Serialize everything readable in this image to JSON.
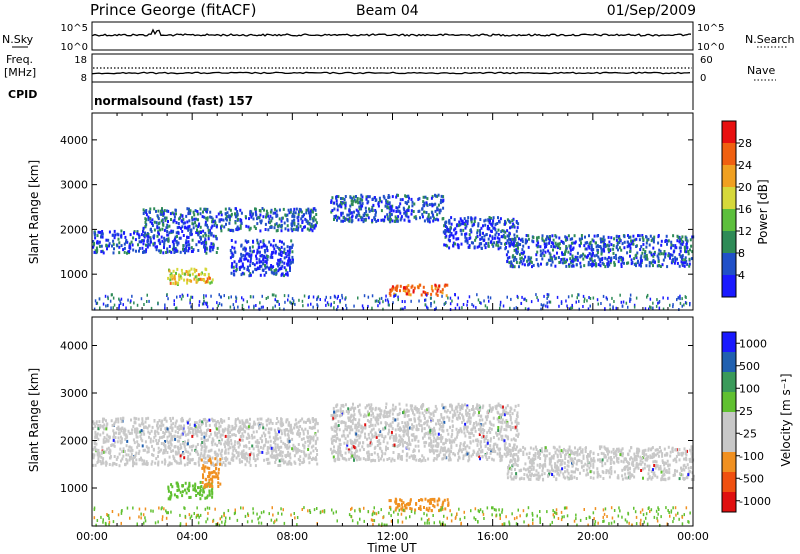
{
  "header": {
    "station": "Prince George (fitACF)",
    "beam": "Beam 04",
    "date": "01/Sep/2009"
  },
  "sky_panel": {
    "left_label": "N.Sky",
    "left_ticks": [
      "10^5",
      "10^0"
    ],
    "right_ticks": [
      "10^5",
      "10^0"
    ],
    "right_label": "N.Search"
  },
  "freq_panel": {
    "left_label_1": "Freq.",
    "left_label_2": "[MHz]",
    "left_ticks": [
      "18",
      "8"
    ],
    "right_ticks": [
      "60",
      "0"
    ],
    "right_label": "Nave"
  },
  "cpid_panel": {
    "label": "CPID",
    "program": "normalsound (fast) 157"
  },
  "colors": {
    "power_scale": [
      "#1a1aff",
      "#2050c8",
      "#2e8b57",
      "#5cbf3c",
      "#d6d83a",
      "#f0a020",
      "#f06010",
      "#e81010"
    ],
    "velocity_scale": [
      "#e01010",
      "#f05010",
      "#f09020",
      "#c8c8c8",
      "#c8c8c8",
      "#60c030",
      "#3a9a5a",
      "#2060b0",
      "#1a1aff"
    ]
  },
  "chart_data": [
    {
      "type": "heatmap",
      "name": "power",
      "xlabel": "Time UT",
      "ylabel": "Slant Range [km]",
      "xlim": [
        0,
        24
      ],
      "ylim": [
        200,
        4600
      ],
      "y_ticks": [
        "1000",
        "2000",
        "3000",
        "4000"
      ],
      "colorbar": {
        "label": "Power [dB]",
        "ticks": [
          "4",
          "8",
          "12",
          "16",
          "20",
          "24",
          "28"
        ],
        "range": [
          0,
          32
        ]
      },
      "features": [
        {
          "t_start": 0,
          "t_end": 5,
          "range_start": 1500,
          "range_end": 2000,
          "level": 5
        },
        {
          "t_start": 2,
          "t_end": 9,
          "range_start": 2000,
          "range_end": 2500,
          "level": 6
        },
        {
          "t_start": 9.5,
          "t_end": 14,
          "range_start": 2200,
          "range_end": 2800,
          "level": 6
        },
        {
          "t_start": 14,
          "t_end": 17,
          "range_start": 1600,
          "range_end": 2300,
          "level": 5
        },
        {
          "t_start": 16.5,
          "t_end": 24,
          "range_start": 1200,
          "range_end": 1900,
          "level": 6
        },
        {
          "t_start": 3,
          "t_end": 4.8,
          "range_start": 800,
          "range_end": 1150,
          "level": 20
        },
        {
          "t_start": 11.8,
          "t_end": 14.2,
          "range_start": 550,
          "range_end": 800,
          "level": 26
        },
        {
          "t_start": 5.5,
          "t_end": 8,
          "range_start": 1000,
          "range_end": 1800,
          "level": 4
        }
      ]
    },
    {
      "type": "heatmap",
      "name": "velocity",
      "xlabel": "Time UT",
      "ylabel": "Slant Range [km]",
      "xlim": [
        0,
        24
      ],
      "ylim": [
        200,
        4600
      ],
      "y_ticks": [
        "1000",
        "2000",
        "3000",
        "4000"
      ],
      "x_ticks": [
        "00:00",
        "04:00",
        "08:00",
        "12:00",
        "16:00",
        "20:00",
        "00:00"
      ],
      "colorbar": {
        "label": "Velocity [m s⁻¹]",
        "ticks": [
          "1000",
          "500",
          "100",
          "25",
          "-25",
          "-100",
          "-500",
          "-1000"
        ]
      },
      "features": [
        {
          "t_start": 0,
          "t_end": 9,
          "range_start": 1500,
          "range_end": 2500,
          "level": "grey"
        },
        {
          "t_start": 9.5,
          "t_end": 17,
          "range_start": 1600,
          "range_end": 2800,
          "level": "grey"
        },
        {
          "t_start": 16.5,
          "t_end": 24,
          "range_start": 1200,
          "range_end": 1900,
          "level": "grey"
        },
        {
          "t_start": 3,
          "t_end": 4.8,
          "range_start": 800,
          "range_end": 1150,
          "level": "green"
        },
        {
          "t_start": 4.3,
          "t_end": 5.1,
          "range_start": 1050,
          "range_end": 1650,
          "level": "orange"
        },
        {
          "t_start": 11.8,
          "t_end": 14.2,
          "range_start": 550,
          "range_end": 800,
          "level": "orange"
        }
      ]
    }
  ]
}
